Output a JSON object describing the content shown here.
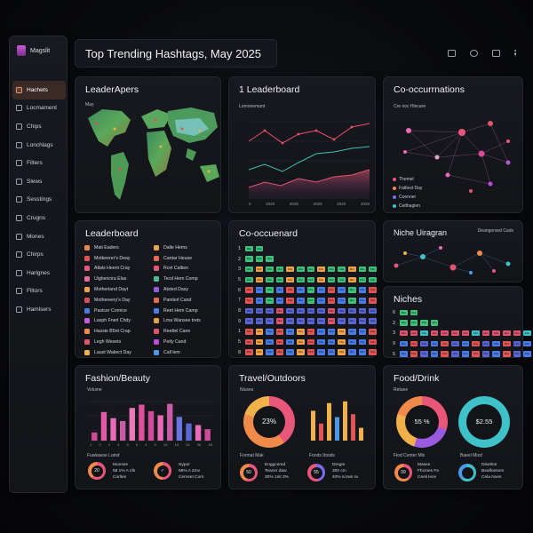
{
  "app": {
    "name": "Magslit"
  },
  "header": {
    "title": "Top Trending Hashtags, May 2025"
  },
  "sidebar": {
    "items": [
      {
        "label": "Hachets",
        "active": true
      },
      {
        "label": "Locmament"
      },
      {
        "label": "Chips"
      },
      {
        "label": "Lonchlags"
      },
      {
        "label": "Filters"
      },
      {
        "label": "Slews"
      },
      {
        "label": "Sesstings"
      },
      {
        "label": "Crugns"
      },
      {
        "label": "Mones"
      },
      {
        "label": "Chirps"
      },
      {
        "label": "Harlgnes"
      },
      {
        "label": "Flltors"
      },
      {
        "label": "Hamlsers"
      }
    ]
  },
  "map_panel": {
    "title": "LeaderApers",
    "label": "May"
  },
  "leaderboard_chart": {
    "title": "1 Leaderboard",
    "label": "Lomonemant",
    "x_ticks": [
      "0",
      "2020",
      "2025",
      "2025",
      "2020",
      "2025"
    ]
  },
  "cooc_panel": {
    "title": "Co-occurrnations",
    "label": "Cre noc Hlecare",
    "legend": [
      "Themel",
      "Fatliest Day",
      "Coenner",
      "Ceithagien"
    ],
    "legend_colors": [
      "#e8567a",
      "#f08a4b",
      "#7b6cf0",
      "#3ec1c9"
    ]
  },
  "leaderboard": {
    "title": "Leaderboard",
    "left": [
      "Mati Eaders",
      "Motkeerer's Deay",
      "Atlals Heent Cray",
      "Uighericira Elas",
      "Motherland Dayt",
      "Mothereery's Day",
      "Pastcer Cornice",
      "Lasph Fnerl Chdy",
      "Haxsie B5nt Crap",
      "Legh Wesets",
      "Laust Wakect Day"
    ],
    "right": [
      "Dalle Hems",
      "Cantar Heuse",
      "Rcel Caltien",
      "Tecd Hem Comp",
      "Atsted Dasy",
      "Pantierl Cand",
      "Reet Hem Camp",
      "Lma Wansee trets",
      "Reettel Cane",
      "Pelty Cand",
      "Call lem"
    ],
    "left_colors": [
      "#e8884b",
      "#e05454",
      "#e8567a",
      "#e86a9a",
      "#f0a24a",
      "#d94c5c",
      "#4a7ce8",
      "#c45ae0",
      "#f08a4b",
      "#e05470",
      "#f0b04a"
    ],
    "right_colors": [
      "#e8a44b",
      "#e86a54",
      "#e8567a",
      "#4bc08e",
      "#9a5ae0",
      "#e86a54",
      "#4a7ce8",
      "#e0a04b",
      "#e05470",
      "#c04ae0",
      "#4a9ae8"
    ]
  },
  "co_matrix": {
    "title": "Co-occuenard",
    "row_labels": [
      "1",
      "2",
      "3",
      "5",
      "6",
      "7",
      "8",
      "9",
      "1",
      "5",
      "8"
    ],
    "chip_text": "Fbs"
  },
  "niche_diagram": {
    "title": "Niche Uiragran",
    "label": "Deangersed Cads"
  },
  "niches": {
    "title": "Niches",
    "row_labels": [
      "6",
      "2",
      "3",
      "9",
      "5"
    ]
  },
  "fashion": {
    "title": "Fashion/Beauty",
    "label": "Volume",
    "bottom_label": "Fuwkaese Laind",
    "x_ticks": [
      "1",
      "2",
      "2",
      "4",
      "5",
      "9",
      "4",
      "0",
      "19",
      "19",
      "24",
      "26",
      "18"
    ],
    "values": [
      20,
      70,
      55,
      48,
      80,
      88,
      72,
      62,
      90,
      58,
      42,
      38,
      28
    ],
    "colors": [
      "#d04c9a",
      "#e05aa8",
      "#e86ab8",
      "#c65ca6",
      "#e87ab8",
      "#e0509a",
      "#d04c9a",
      "#e86ab8",
      "#c65ca6",
      "#6a74e0",
      "#5a66d4",
      "#e86ab8",
      "#d04c9a"
    ],
    "stats": [
      {
        "value": "20",
        "lines": [
          "Munsee",
          "58 1% A nfs",
          "Corltes"
        ]
      },
      {
        "value": "",
        "lines": [
          "Nypor",
          "58% A 2mv",
          "Cernset Cors"
        ]
      }
    ]
  },
  "travel": {
    "title": "Travel/Outdoors",
    "label": "Niuses",
    "donut_value": "23%",
    "bar_values": [
      70,
      40,
      88,
      55,
      92,
      62,
      30
    ],
    "bar_colors": [
      "#f0b04a",
      "#e05454",
      "#f0b04a",
      "#4a9ae8",
      "#f0b04a",
      "#e05454",
      "#f0b04a"
    ],
    "bottom_left": "Format Mak",
    "bottom_right": "Fonds Itoods",
    "stats": [
      {
        "value": "50",
        "lines": [
          "Enggcered",
          "Teacer daw",
          "30% 1nit 3%"
        ]
      },
      {
        "value": "55",
        "lines": [
          "Dregm",
          "300 cm",
          "40% scrws ra"
        ]
      }
    ]
  },
  "food": {
    "title": "Food/Drink",
    "label": "Retuee",
    "donut1_value": "55 %",
    "donut2_value": "$2.55",
    "bottom_left": "Fiod Center Mlx",
    "bottom_right": "Baeel Mixd",
    "stats": [
      {
        "value": "09",
        "lines": [
          "Masee",
          "Fhcmes Fe",
          "Ceeli lece"
        ]
      },
      {
        "value": "",
        "lines": [
          "Diselme",
          "Beafloesom",
          "Cela Noes"
        ]
      }
    ]
  }
}
